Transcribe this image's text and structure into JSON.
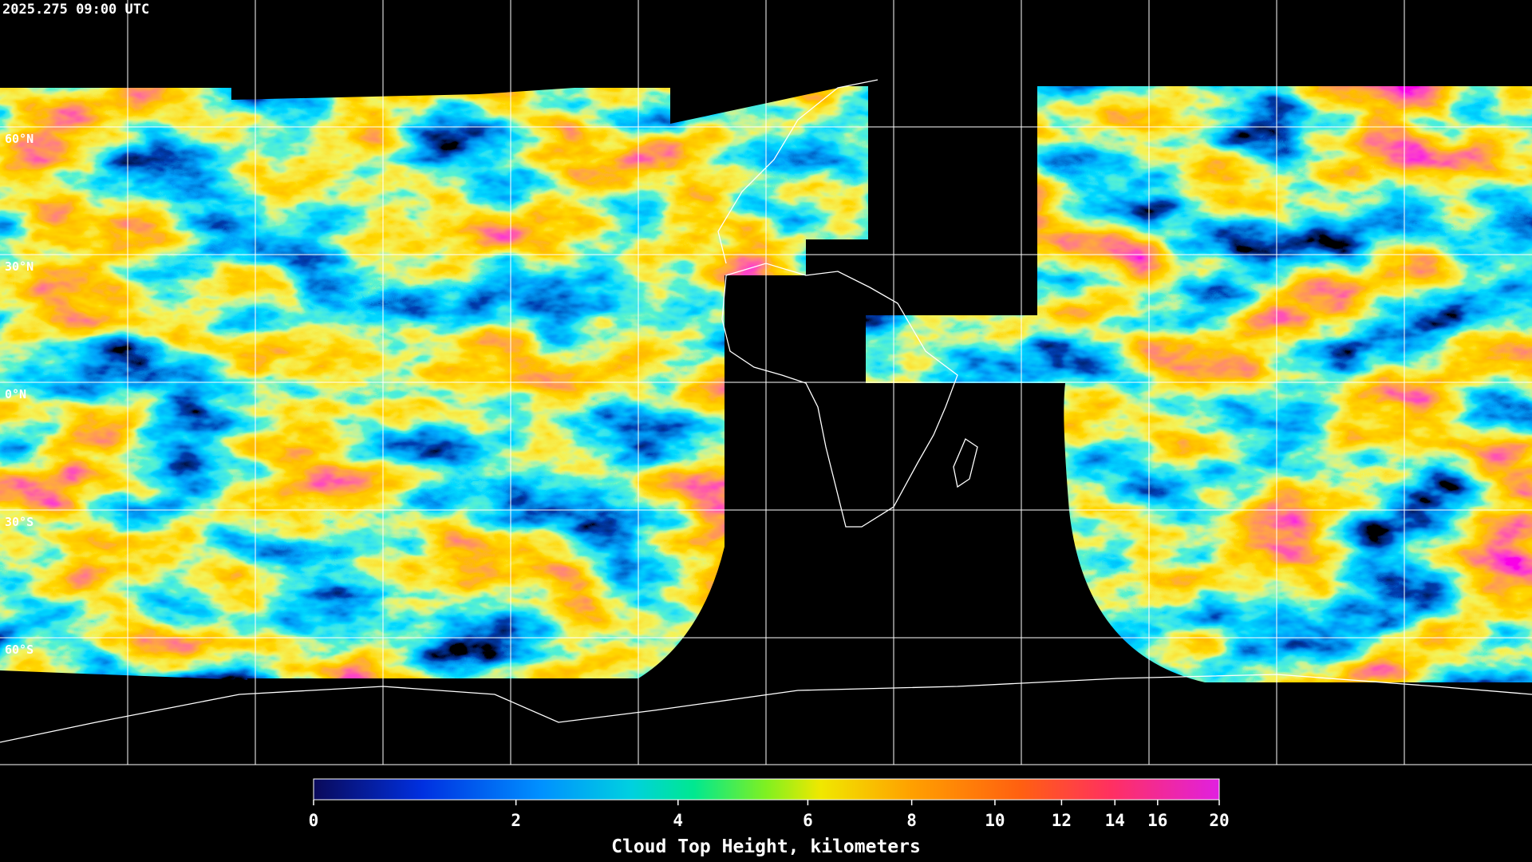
{
  "timestamp": "2025.275 09:00 UTC",
  "map": {
    "lat_labels": [
      "60°N",
      "30°N",
      "0°N",
      "30°S",
      "60°S"
    ]
  },
  "colorbar": {
    "label": "Cloud Top Height, kilometers",
    "range": [
      0,
      20
    ],
    "ticks": [
      0,
      2,
      4,
      6,
      8,
      10,
      12,
      14,
      16,
      20
    ]
  }
}
